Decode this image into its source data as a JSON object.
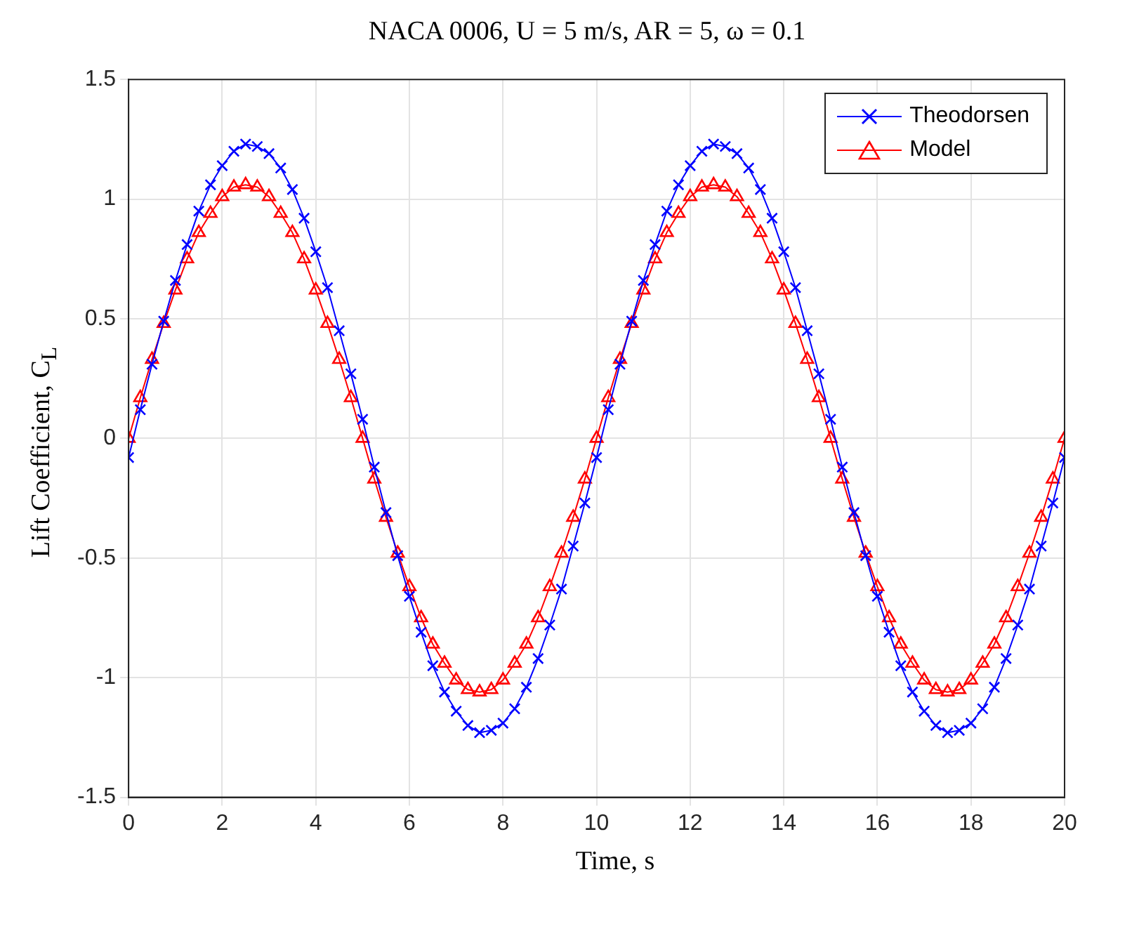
{
  "chart_data": {
    "type": "line",
    "title": "NACA 0006, U = 5 m/s, AR = 5, ω = 0.1",
    "xlabel": "Time, s",
    "ylabel": "Lift Coefficient, C$_{L}$",
    "x": [
      0,
      0.25,
      0.5,
      0.75,
      1,
      1.25,
      1.5,
      1.75,
      2,
      2.25,
      2.5,
      2.75,
      3,
      3.25,
      3.5,
      3.75,
      4,
      4.25,
      4.5,
      4.75,
      5,
      5.25,
      5.5,
      5.75,
      6,
      6.25,
      6.5,
      6.75,
      7,
      7.25,
      7.5,
      7.75,
      8,
      8.25,
      8.5,
      8.75,
      9,
      9.25,
      9.5,
      9.75,
      10,
      10.25,
      10.5,
      10.75,
      11,
      11.25,
      11.5,
      11.75,
      12,
      12.25,
      12.5,
      12.75,
      13,
      13.25,
      13.5,
      13.75,
      14,
      14.25,
      14.5,
      14.75,
      15,
      15.25,
      15.5,
      15.75,
      16,
      16.25,
      16.5,
      16.75,
      17,
      17.25,
      17.5,
      17.75,
      18,
      18.25,
      18.5,
      18.75,
      19,
      19.25,
      19.5,
      19.75,
      20
    ],
    "series": [
      {
        "name": "Theodorsen",
        "color": "#0000ff",
        "marker": "cross",
        "values": [
          -0.08,
          0.12,
          0.31,
          0.49,
          0.66,
          0.81,
          0.95,
          1.06,
          1.14,
          1.2,
          1.23,
          1.22,
          1.19,
          1.13,
          1.04,
          0.92,
          0.78,
          0.63,
          0.45,
          0.27,
          0.08,
          -0.12,
          -0.31,
          -0.49,
          -0.66,
          -0.81,
          -0.95,
          -1.06,
          -1.14,
          -1.2,
          -1.23,
          -1.22,
          -1.19,
          -1.13,
          -1.04,
          -0.92,
          -0.78,
          -0.63,
          -0.45,
          -0.27,
          -0.08,
          0.12,
          0.31,
          0.49,
          0.66,
          0.81,
          0.95,
          1.06,
          1.14,
          1.2,
          1.23,
          1.22,
          1.19,
          1.13,
          1.04,
          0.92,
          0.78,
          0.63,
          0.45,
          0.27,
          0.08,
          -0.12,
          -0.31,
          -0.49,
          -0.66,
          -0.81,
          -0.95,
          -1.06,
          -1.14,
          -1.2,
          -1.23,
          -1.22,
          -1.19,
          -1.13,
          -1.04,
          -0.92,
          -0.78,
          -0.63,
          -0.45,
          -0.27,
          -0.08
        ]
      },
      {
        "name": "Model",
        "color": "#ff0000",
        "marker": "triangle",
        "values": [
          0,
          0.17,
          0.33,
          0.48,
          0.62,
          0.75,
          0.86,
          0.94,
          1.01,
          1.05,
          1.06,
          1.05,
          1.01,
          0.94,
          0.86,
          0.75,
          0.62,
          0.48,
          0.33,
          0.17,
          0,
          -0.17,
          -0.33,
          -0.48,
          -0.62,
          -0.75,
          -0.86,
          -0.94,
          -1.01,
          -1.05,
          -1.06,
          -1.05,
          -1.01,
          -0.94,
          -0.86,
          -0.75,
          -0.62,
          -0.48,
          -0.33,
          -0.17,
          0,
          0.17,
          0.33,
          0.48,
          0.62,
          0.75,
          0.86,
          0.94,
          1.01,
          1.05,
          1.06,
          1.05,
          1.01,
          0.94,
          0.86,
          0.75,
          0.62,
          0.48,
          0.33,
          0.17,
          0,
          -0.17,
          -0.33,
          -0.48,
          -0.62,
          -0.75,
          -0.86,
          -0.94,
          -1.01,
          -1.05,
          -1.06,
          -1.05,
          -1.01,
          -0.94,
          -0.86,
          -0.75,
          -0.62,
          -0.48,
          -0.33,
          -0.17,
          0
        ]
      }
    ],
    "xlim": [
      0,
      20
    ],
    "xticks": [
      0,
      2,
      4,
      6,
      8,
      10,
      12,
      14,
      16,
      18,
      20
    ],
    "ylim": [
      -1.5,
      1.5
    ],
    "yticks": [
      -1.5,
      -1,
      -0.5,
      0,
      0.5,
      1,
      1.5
    ],
    "grid": true,
    "legend": "top right",
    "line_style": "solid"
  }
}
